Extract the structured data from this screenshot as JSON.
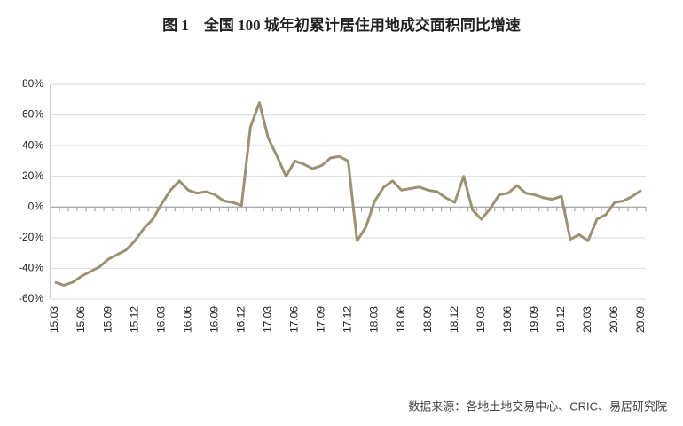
{
  "chart_data": {
    "type": "line",
    "title": "图 1　全国 100 城年初累计居住用地成交面积同比增速",
    "source": "数据来源：各地土地交易中心、CRIC、易居研究院",
    "categories": [
      "15.03",
      null,
      null,
      "15.06",
      null,
      null,
      "15.09",
      null,
      null,
      "15.12",
      null,
      null,
      "16.03",
      null,
      null,
      "16.06",
      null,
      null,
      "16.09",
      null,
      null,
      "16.12",
      null,
      null,
      "17.03",
      null,
      null,
      "17.06",
      null,
      null,
      "17.09",
      null,
      null,
      "17.12",
      null,
      null,
      "18.03",
      null,
      null,
      "18.06",
      null,
      null,
      "18.09",
      null,
      null,
      "18.12",
      null,
      null,
      "19.03",
      null,
      null,
      "19.06",
      null,
      null,
      "19.09",
      null,
      null,
      "19.12",
      null,
      null,
      "20.03",
      null,
      null,
      "20.06",
      null,
      null,
      "20.09"
    ],
    "values": [
      -49,
      -51,
      -49,
      -45,
      -42,
      -39,
      -34,
      -31,
      -28,
      -22,
      -14,
      -8,
      2,
      11,
      17,
      11,
      9,
      10,
      8,
      4,
      3,
      1,
      52,
      68,
      45,
      33,
      20,
      30,
      28,
      25,
      27,
      32,
      33,
      30,
      -22,
      -13,
      4,
      13,
      17,
      11,
      12,
      13,
      11,
      10,
      6,
      3,
      20,
      -2,
      -8,
      -1,
      8,
      9,
      14,
      9,
      8,
      6,
      5,
      7,
      -21,
      -18,
      -22,
      -8,
      -5,
      3,
      4,
      7,
      11
    ],
    "color": "#9c9172",
    "ylim": [
      -60,
      80
    ],
    "yticks": [
      {
        "value": -60,
        "label": "-60%"
      },
      {
        "value": -40,
        "label": "-40%"
      },
      {
        "value": -20,
        "label": "-20%"
      },
      {
        "value": 0,
        "label": "0%"
      },
      {
        "value": 20,
        "label": "20%"
      },
      {
        "value": 40,
        "label": "40%"
      },
      {
        "value": 60,
        "label": "60%"
      },
      {
        "value": 80,
        "label": "80%"
      }
    ],
    "grid": true
  }
}
